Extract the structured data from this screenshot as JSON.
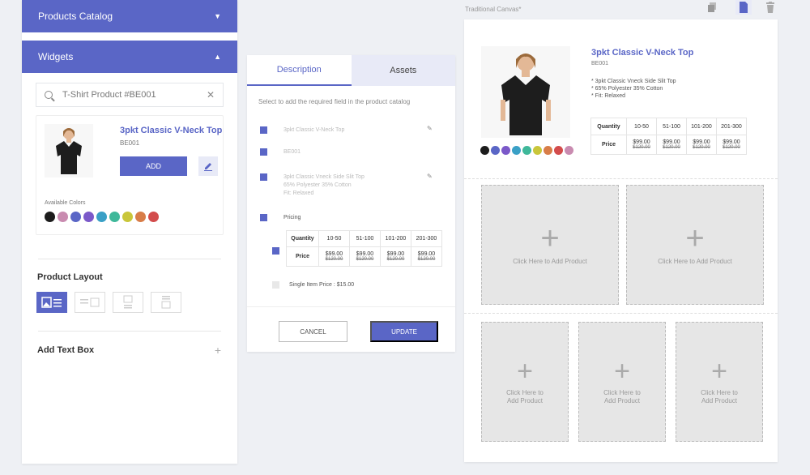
{
  "sidebar": {
    "products_catalog": "Products Catalog",
    "widgets": "Widgets",
    "search_value": "T-Shirt Product #BE001",
    "product": {
      "title": "3pkt Classic V-Neck Top",
      "code": "BE001",
      "add_label": "ADD",
      "available_colors_label": "Available Colors",
      "colors": [
        "#1c1c1c",
        "#c98bb0",
        "#5a66c6",
        "#7b59c9",
        "#3aa0c6",
        "#3fb89a",
        "#c9c63a",
        "#d87d48",
        "#d34c4c"
      ]
    },
    "product_layout": "Product Layout",
    "add_text_box": "Add Text Box"
  },
  "editor": {
    "tab_description": "Description",
    "tab_assets": "Assets",
    "hint": "Select to add the required field in the product catalog",
    "fields": [
      "3pkt Classic V-Neck Top",
      "BE001",
      "3pkt Classic Vneck Side Slit Top",
      "65% Polyester 35% Cotton",
      "Fit: Relaxed",
      "Pricing"
    ],
    "pricing": {
      "headers": [
        "Quantity",
        "10-50",
        "51-100",
        "101-200",
        "201-300"
      ],
      "price_label": "Price",
      "prices": [
        "$99.00",
        "$99.00",
        "$99.00",
        "$99.00"
      ],
      "old_prices": [
        "$120.00",
        "$120.00",
        "$120.00",
        "$120.00"
      ]
    },
    "single_price": "Single Item Price : $15.00",
    "cancel": "CANCEL",
    "update": "UPDATE"
  },
  "canvas": {
    "title": "Traditional Canvas*",
    "product": {
      "title": "3pkt Classic V-Neck Top",
      "code": "BE001",
      "bullets": [
        "* 3pkt Classic Vneck Side Slit Top",
        "* 65% Polyester 35% Cotton",
        "* Fit: Relaxed"
      ],
      "headers": [
        "Quantity",
        "10-50",
        "51-100",
        "101-200",
        "201-300"
      ],
      "price_label": "Price",
      "prices": [
        "$99.00",
        "$99.00",
        "$99.00",
        "$99.00"
      ],
      "old_prices": [
        "$120.00",
        "$120.00",
        "$120.00",
        "$120.00"
      ],
      "colors": [
        "#1c1c1c",
        "#5a66c6",
        "#7b59c9",
        "#3aa0c6",
        "#3fb89a",
        "#c9c63a",
        "#d87d48",
        "#d34c4c",
        "#c98bb0"
      ]
    },
    "slot_text": "Click Here to Add Product",
    "slot_text_line1": "Click Here to",
    "slot_text_line2": "Add Product"
  }
}
